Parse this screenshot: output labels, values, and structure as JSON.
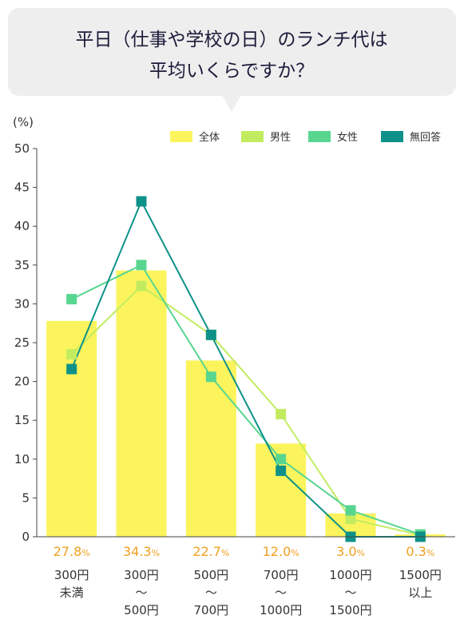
{
  "header": {
    "title_line1": "平日（仕事や学校の日）のランチ代は",
    "title_line2": "平均いくらですか？"
  },
  "chart_data": {
    "type": "bar",
    "y_unit_label": "(%)",
    "ylim": [
      0,
      50
    ],
    "yticks": [
      0,
      5,
      10,
      15,
      20,
      25,
      30,
      35,
      40,
      45,
      50
    ],
    "categories": [
      [
        "300円",
        "未満"
      ],
      [
        "300円",
        "〜",
        "500円"
      ],
      [
        "500円",
        "〜",
        "700円"
      ],
      [
        "700円",
        "〜",
        "1000円"
      ],
      [
        "1000円",
        "〜",
        "1500円"
      ],
      [
        "1500円",
        "以上"
      ]
    ],
    "value_labels": [
      "27.8",
      "34.3",
      "22.7",
      "12.0",
      "3.0",
      "0.3"
    ],
    "value_unit": "%",
    "series": [
      {
        "name": "全体",
        "type": "bar",
        "color": "#fbf45c",
        "values": [
          27.8,
          34.3,
          22.7,
          12.0,
          3.0,
          0.3
        ]
      },
      {
        "name": "男性",
        "type": "line",
        "color": "#c2ec60",
        "values": [
          23.5,
          32.3,
          26.0,
          15.8,
          2.3,
          0.2
        ]
      },
      {
        "name": "女性",
        "type": "line",
        "color": "#58d690",
        "values": [
          30.6,
          35.0,
          20.6,
          10.0,
          3.4,
          0.3
        ]
      },
      {
        "name": "無回答",
        "type": "line",
        "color": "#0e9188",
        "values": [
          21.6,
          43.2,
          26.0,
          8.5,
          0.0,
          0.0
        ]
      }
    ],
    "legend_position": "top-right",
    "grid": false
  }
}
